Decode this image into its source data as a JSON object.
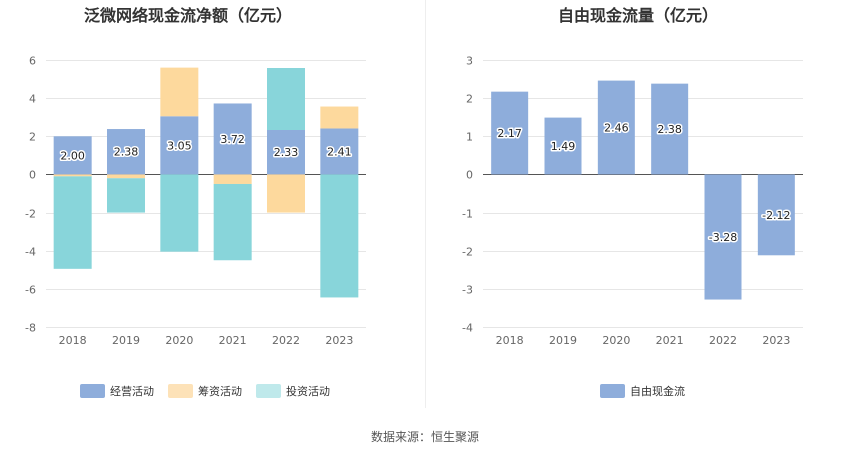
{
  "footer": {
    "source": "数据来源：恒生聚源"
  },
  "chart_data": [
    {
      "type": "bar",
      "stacked": true,
      "title": "泛微网络现金流净额（亿元）",
      "categories": [
        "2018",
        "2019",
        "2020",
        "2021",
        "2022",
        "2023"
      ],
      "ylim": [
        -8,
        6
      ],
      "yticks": [
        6,
        4,
        2,
        0,
        -2,
        -4,
        -6,
        -8
      ],
      "grid": true,
      "legend_position": "bottom",
      "series": [
        {
          "name": "经营活动",
          "color": "#8eaddb",
          "values": [
            2.0,
            2.38,
            3.05,
            3.72,
            2.33,
            2.41
          ],
          "labeled": true
        },
        {
          "name": "筹资活动",
          "color": "#fdd99d",
          "values": [
            -0.1,
            -0.2,
            2.55,
            -0.5,
            -2.0,
            1.15
          ],
          "labeled": false
        },
        {
          "name": "投资活动",
          "color": "#88d5da",
          "values": [
            -4.85,
            -1.8,
            -4.05,
            -4.0,
            3.25,
            -6.45
          ],
          "labeled": false
        }
      ],
      "legend_colors": [
        "#8eaddb",
        "#fde2b8",
        "#bfe9eb"
      ]
    },
    {
      "type": "bar",
      "title": "自由现金流量（亿元）",
      "categories": [
        "2018",
        "2019",
        "2020",
        "2021",
        "2022",
        "2023"
      ],
      "ylim": [
        -4,
        3
      ],
      "yticks": [
        3,
        2,
        1,
        0,
        -1,
        -2,
        -3,
        -4
      ],
      "grid": true,
      "legend_position": "bottom",
      "series": [
        {
          "name": "自由现金流",
          "color": "#8eaddb",
          "values": [
            2.17,
            1.49,
            2.46,
            2.38,
            -3.28,
            -2.12
          ],
          "labeled": true
        }
      ],
      "legend_colors": [
        "#8eaddb"
      ]
    }
  ]
}
